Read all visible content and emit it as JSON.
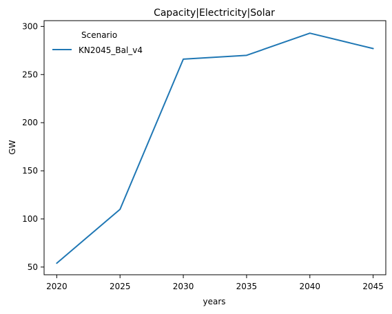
{
  "chart_data": {
    "type": "line",
    "title": "Capacity|Electricity|Solar",
    "xlabel": "years",
    "ylabel": "GW",
    "x": [
      2020,
      2025,
      2030,
      2035,
      2040,
      2045
    ],
    "xticks": [
      2020,
      2025,
      2030,
      2035,
      2040,
      2045
    ],
    "yticks": [
      50,
      100,
      150,
      200,
      250,
      300
    ],
    "xlim": [
      2019,
      2046
    ],
    "ylim": [
      42,
      306
    ],
    "grid": false,
    "legend": {
      "title": "Scenario",
      "placement": "top-left"
    },
    "series": [
      {
        "name": "KN2045_Bal_v4",
        "color": "#1f77b4",
        "values": [
          54,
          110,
          266,
          270,
          293,
          277
        ]
      }
    ]
  }
}
